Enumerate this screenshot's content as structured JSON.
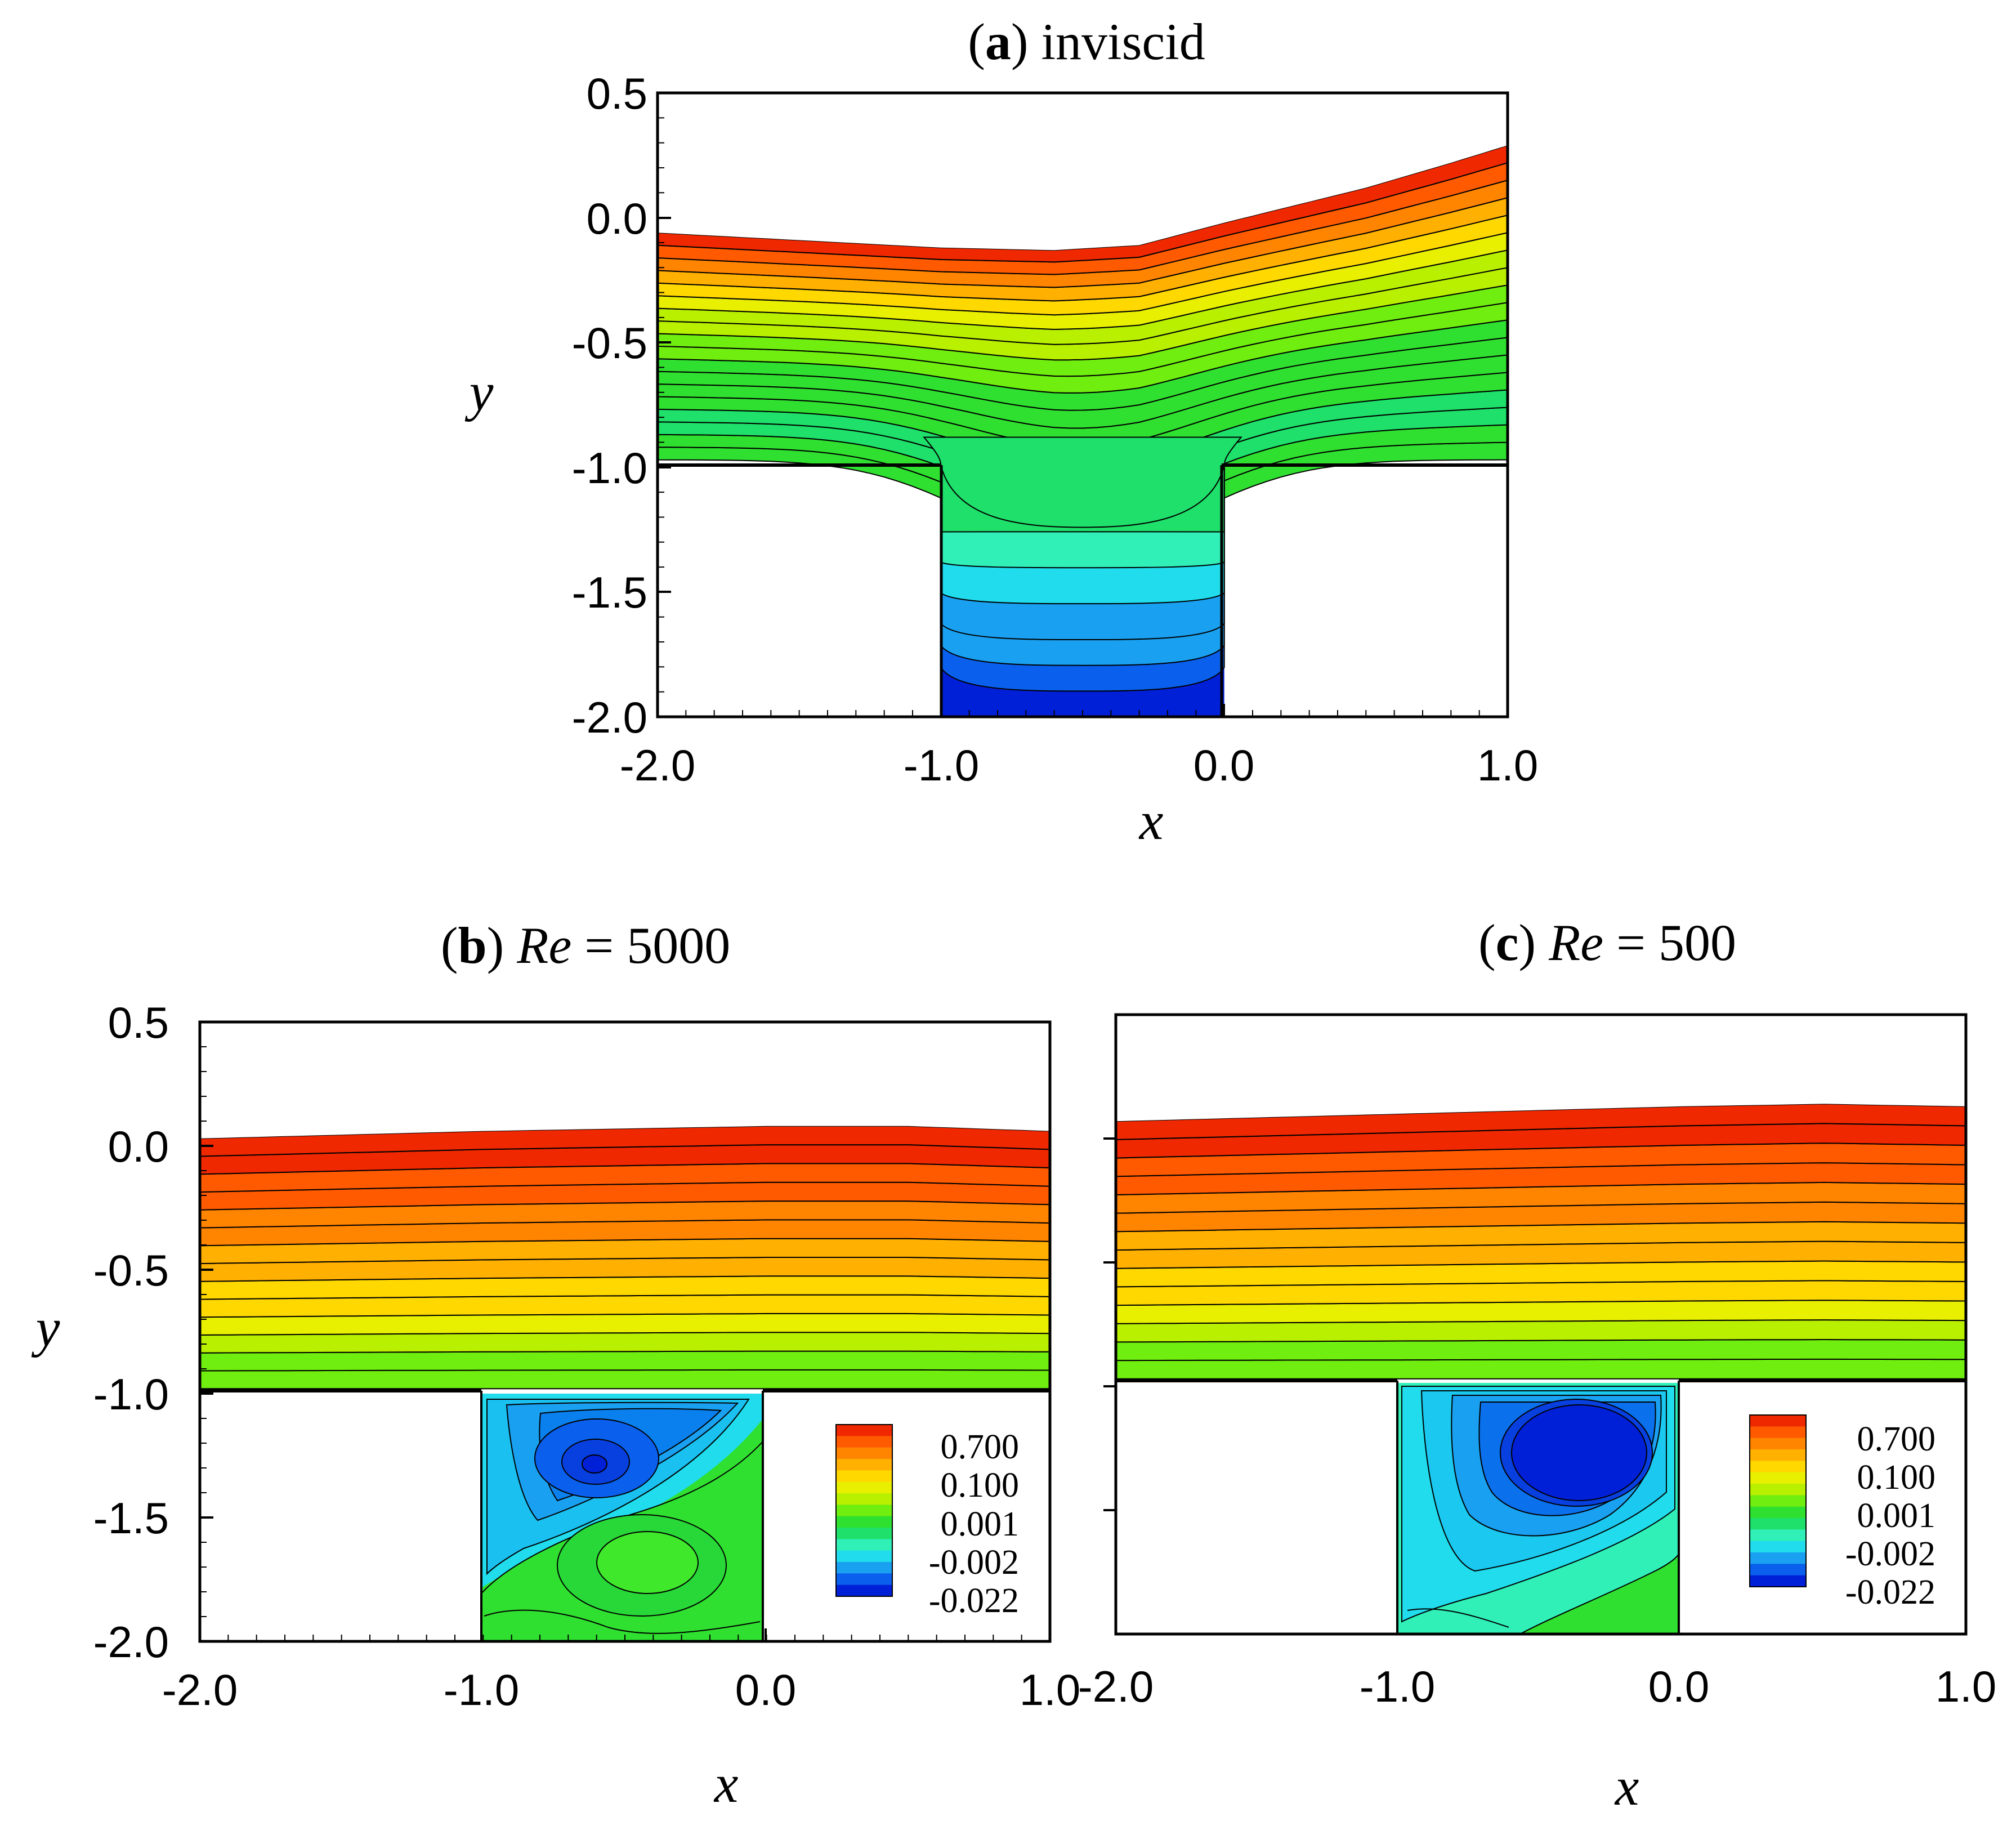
{
  "colors": {
    "levels": [
      "#0020d8",
      "#0a60ec",
      "#1aa0f0",
      "#20dcec",
      "#30f0b8",
      "#1ee06a",
      "#30e030",
      "#70ee10",
      "#b8f000",
      "#e8f000",
      "#ffd800",
      "#ffb000",
      "#ff8400",
      "#ff5a00",
      "#f02800"
    ],
    "axis": "#000000",
    "contour_line": "#000000"
  },
  "chart_data": [
    {
      "id": "a",
      "type": "contour",
      "title_label": "a",
      "title_rest": "inviscid",
      "xlabel": "x",
      "ylabel": "y",
      "xlim": [
        -2.0,
        1.0
      ],
      "ylim": [
        -2.0,
        0.5
      ],
      "xticks": [
        "-2.0",
        "-1.0",
        "0.0",
        "1.0"
      ],
      "yticks": [
        "0.5",
        "0.0",
        "-0.5",
        "-1.0",
        "-1.5",
        "-2.0"
      ],
      "domain": {
        "upper_wall_y": -0.97,
        "cavity_x": [
          -1.0,
          0.0
        ],
        "cavity_bottom_y": -2.0,
        "free_surface": [
          [
            -2.0,
            -0.06
          ],
          [
            -1.5,
            -0.09
          ],
          [
            -1.0,
            -0.12
          ],
          [
            -0.6,
            -0.13
          ],
          [
            -0.3,
            -0.11
          ],
          [
            0.0,
            -0.02
          ],
          [
            0.5,
            0.12
          ],
          [
            0.8,
            0.22
          ],
          [
            1.0,
            0.29
          ]
        ]
      },
      "channel_levels": [
        6,
        6,
        5,
        5,
        6,
        6,
        6,
        6,
        7,
        7,
        8,
        8,
        9,
        10,
        11,
        12,
        13,
        14
      ],
      "cavity_levels": [
        0,
        1,
        2,
        3,
        4,
        5
      ]
    },
    {
      "id": "b",
      "type": "contour",
      "title_label": "b",
      "title_re": "Re",
      "title_eq": "=",
      "title_value": "5000",
      "xlabel": "x",
      "ylabel": "y",
      "xlim": [
        -2.0,
        1.0
      ],
      "ylim": [
        -2.0,
        0.5
      ],
      "xticks": [
        "-2.0",
        "-1.0",
        "0.0",
        "1.0"
      ],
      "yticks": [
        "0.5",
        "0.0",
        "-0.5",
        "-1.0",
        "-1.5",
        "-2.0"
      ],
      "domain": {
        "upper_wall_y": -0.98,
        "cavity_x": [
          -1.0,
          0.0
        ],
        "cavity_bottom_y": -2.0,
        "free_surface": [
          [
            -2.0,
            0.03
          ],
          [
            -1.0,
            0.06
          ],
          [
            0.0,
            0.08
          ],
          [
            0.5,
            0.08
          ],
          [
            1.0,
            0.06
          ]
        ]
      },
      "channel_levels": [
        7,
        7,
        8,
        9,
        10,
        10,
        11,
        11,
        12,
        12,
        13,
        13,
        14,
        14
      ],
      "vortex": {
        "center": [
          -0.58,
          -1.33
        ],
        "value": -0.022
      }
    },
    {
      "id": "c",
      "type": "contour",
      "title_label": "c",
      "title_re": "Re",
      "title_eq": "=",
      "title_value": "500",
      "xlabel": "x",
      "ylabel": "y",
      "xlim": [
        -2.0,
        1.0
      ],
      "ylim": [
        -2.0,
        0.5
      ],
      "xticks": [
        "-2.0",
        "-1.0",
        "0.0",
        "1.0"
      ],
      "yticks": [],
      "domain": {
        "upper_wall_y": -0.97,
        "cavity_x": [
          -1.0,
          0.0
        ],
        "cavity_bottom_y": -2.0,
        "free_surface": [
          [
            -2.0,
            0.07
          ],
          [
            -1.0,
            0.1
          ],
          [
            0.0,
            0.13
          ],
          [
            0.5,
            0.14
          ],
          [
            1.0,
            0.13
          ]
        ]
      },
      "channel_levels": [
        7,
        7,
        8,
        9,
        10,
        10,
        11,
        11,
        12,
        12,
        13,
        13,
        14,
        14
      ],
      "vortex": {
        "center": [
          -0.45,
          -1.28
        ],
        "value": -0.022
      }
    }
  ],
  "legend": {
    "entries": [
      "0.700",
      "0.100",
      "0.001",
      "-0.002",
      "-0.022"
    ]
  }
}
